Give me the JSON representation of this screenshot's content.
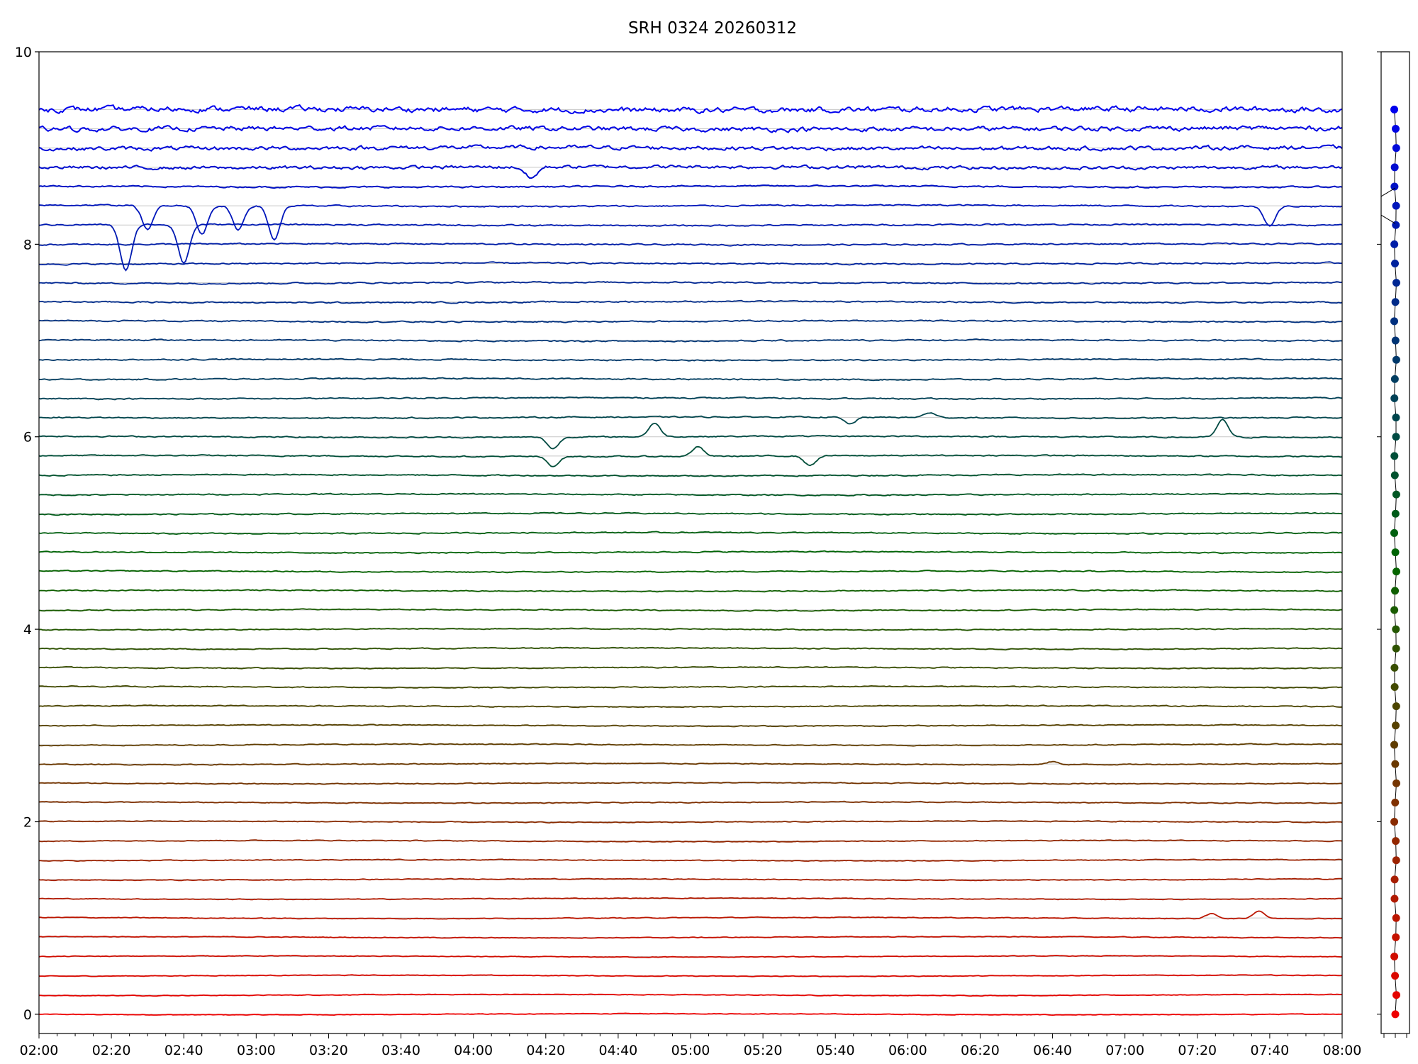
{
  "chart_data": {
    "type": "line",
    "title": "SRH 0324 20260312",
    "xlabel": "",
    "ylabel": "",
    "x_range": [
      "02:00",
      "08:00"
    ],
    "ylim": [
      -0.2,
      10
    ],
    "x_ticks": [
      "02:00",
      "02:20",
      "02:40",
      "03:00",
      "03:20",
      "03:40",
      "04:00",
      "04:20",
      "04:40",
      "05:00",
      "05:20",
      "05:40",
      "06:00",
      "06:20",
      "06:40",
      "07:00",
      "07:20",
      "07:40",
      "08:00"
    ],
    "y_ticks": [
      0,
      2,
      4,
      6,
      8,
      10
    ],
    "grid": "horizontal lines at each trace baseline",
    "trace_count": 48,
    "trace_baselines": [
      0,
      0.2,
      0.4,
      0.6,
      0.8,
      1.0,
      1.2,
      1.4,
      1.6,
      1.8,
      2.0,
      2.2,
      2.4,
      2.6,
      2.8,
      3.0,
      3.2,
      3.4,
      3.6,
      3.8,
      4.0,
      4.2,
      4.4,
      4.6,
      4.8,
      5.0,
      5.2,
      5.4,
      5.6,
      5.8,
      6.0,
      6.2,
      6.4,
      6.6,
      6.8,
      7.0,
      7.2,
      7.4,
      7.6,
      7.8,
      8.0,
      8.2,
      8.4,
      8.6,
      8.8,
      9.0,
      9.2,
      9.4
    ],
    "color_gradient": [
      "#ee0000",
      "#006600",
      "#0000ee"
    ],
    "events": [
      {
        "trace": 41,
        "time": "02:24",
        "amplitude": -0.48
      },
      {
        "trace": 41,
        "time": "02:40",
        "amplitude": -0.4
      },
      {
        "trace": 42,
        "time": "02:30",
        "amplitude": -0.25
      },
      {
        "trace": 42,
        "time": "02:45",
        "amplitude": -0.3
      },
      {
        "trace": 42,
        "time": "02:55",
        "amplitude": -0.25
      },
      {
        "trace": 42,
        "time": "03:05",
        "amplitude": -0.35
      },
      {
        "trace": 42,
        "time": "07:40",
        "amplitude": -0.2
      },
      {
        "trace": 44,
        "time": "04:16",
        "amplitude": -0.12
      },
      {
        "trace": 29,
        "time": "04:22",
        "amplitude": -0.1
      },
      {
        "trace": 30,
        "time": "04:22",
        "amplitude": -0.12
      },
      {
        "trace": 30,
        "time": "04:50",
        "amplitude": 0.14
      },
      {
        "trace": 29,
        "time": "05:02",
        "amplitude": 0.1
      },
      {
        "trace": 29,
        "time": "05:33",
        "amplitude": -0.1
      },
      {
        "trace": 31,
        "time": "05:44",
        "amplitude": -0.07
      },
      {
        "trace": 31,
        "time": "06:06",
        "amplitude": 0.05
      },
      {
        "trace": 30,
        "time": "07:27",
        "amplitude": 0.18
      },
      {
        "trace": 13,
        "time": "06:40",
        "amplitude": 0.03
      },
      {
        "trace": 5,
        "time": "07:24",
        "amplitude": 0.05
      },
      {
        "trace": 5,
        "time": "07:37",
        "amplitude": 0.08
      }
    ]
  }
}
